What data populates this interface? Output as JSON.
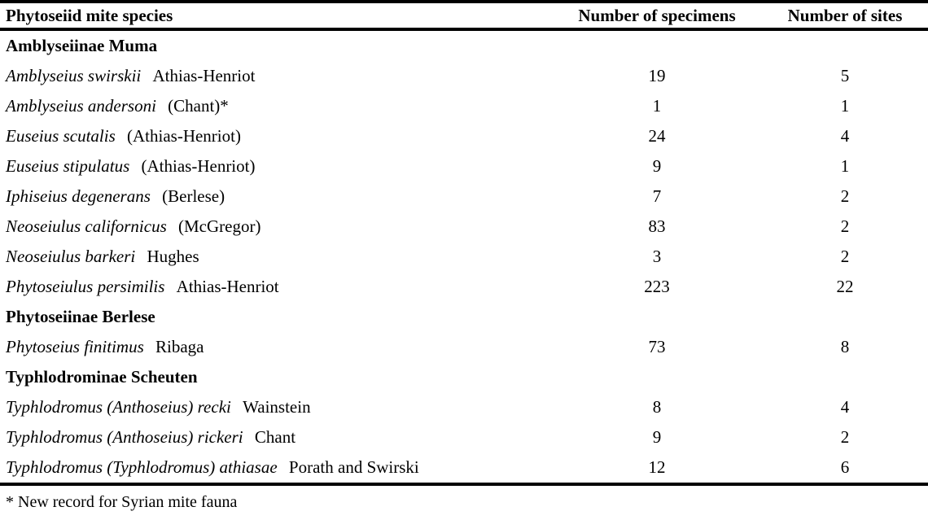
{
  "header": {
    "species_col": "Phytoseiid mite species",
    "specimens_col": "Number of specimens",
    "sites_col": "Number of sites"
  },
  "sections": [
    {
      "name": "Amblyseiinae Muma",
      "rows": [
        {
          "species": "Amblyseius swirskii",
          "authority": "Athias-Henriot",
          "specimens": "19",
          "sites": "5"
        },
        {
          "species": "Amblyseius andersoni",
          "authority": "(Chant)*",
          "specimens": "1",
          "sites": "1"
        },
        {
          "species": "Euseius scutalis",
          "authority": "(Athias-Henriot)",
          "specimens": "24",
          "sites": "4"
        },
        {
          "species": "Euseius stipulatus",
          "authority": "(Athias-Henriot)",
          "specimens": "9",
          "sites": "1"
        },
        {
          "species": "Iphiseius degenerans",
          "authority": "(Berlese)",
          "specimens": "7",
          "sites": "2"
        },
        {
          "species": "Neoseiulus californicus",
          "authority": "(McGregor)",
          "specimens": "83",
          "sites": "2"
        },
        {
          "species": "Neoseiulus barkeri",
          "authority": "Hughes",
          "specimens": "3",
          "sites": "2"
        },
        {
          "species": "Phytoseiulus persimilis",
          "authority": "Athias-Henriot",
          "specimens": "223",
          "sites": "22"
        }
      ]
    },
    {
      "name": "Phytoseiinae Berlese",
      "rows": [
        {
          "species": "Phytoseius finitimus",
          "authority": "Ribaga",
          "specimens": "73",
          "sites": "8"
        }
      ]
    },
    {
      "name": "Typhlodrominae Scheuten",
      "rows": [
        {
          "species": "Typhlodromus (Anthoseius) recki",
          "authority": "Wainstein",
          "specimens": "8",
          "sites": "4"
        },
        {
          "species": "Typhlodromus (Anthoseius) rickeri",
          "authority": "Chant",
          "specimens": "9",
          "sites": "2"
        },
        {
          "species": "Typhlodromus (Typhlodromus) athiasae",
          "authority": "Porath and Swirski",
          "specimens": "12",
          "sites": "6"
        }
      ]
    }
  ],
  "footnote": "* New record for Syrian mite fauna"
}
